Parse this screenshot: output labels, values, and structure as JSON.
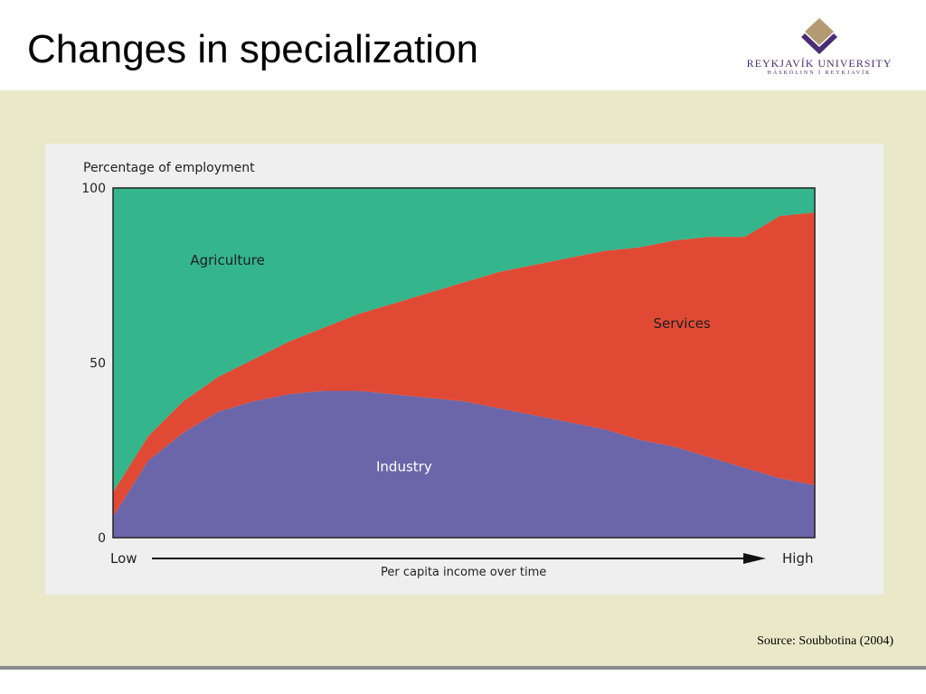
{
  "slide": {
    "title": "Changes in specialization",
    "source": "Source: Soubbotina (2004)"
  },
  "logo": {
    "name": "REYKJAVÍK UNIVERSITY",
    "subtitle": "HÁSKÓLINN Í REYKJAVÍK",
    "icon": "diamond-mark-icon",
    "colors": {
      "primary": "#4a2d74",
      "accent": "#b39a72"
    }
  },
  "chart_data": {
    "type": "area",
    "title": "",
    "ylabel": "Percentage of employment",
    "ylim": [
      0,
      100
    ],
    "yticks": [
      0,
      50,
      100
    ],
    "xlabel": "Per capita income over time",
    "x_low_label": "Low",
    "x_high_label": "High",
    "x": [
      0,
      0.05,
      0.1,
      0.15,
      0.2,
      0.25,
      0.3,
      0.35,
      0.4,
      0.45,
      0.5,
      0.55,
      0.6,
      0.65,
      0.7,
      0.75,
      0.8,
      0.85,
      0.9,
      0.95,
      1
    ],
    "stacked": true,
    "series": [
      {
        "name": "Industry",
        "color": "#6b66a9",
        "values": [
          6,
          22,
          30,
          36,
          39,
          41,
          42,
          42,
          41,
          40,
          39,
          37,
          35,
          33,
          31,
          28,
          26,
          23,
          20,
          17,
          15
        ]
      },
      {
        "name": "Services",
        "color": "#e04a34",
        "values": [
          7,
          7,
          9,
          10,
          12,
          15,
          18,
          22,
          26,
          30,
          34,
          39,
          43,
          47,
          51,
          55,
          59,
          63,
          66,
          75,
          78
        ]
      },
      {
        "name": "Agriculture",
        "color": "#34b58c",
        "values": [
          87,
          71,
          61,
          54,
          49,
          44,
          40,
          36,
          33,
          30,
          27,
          24,
          22,
          20,
          18,
          17,
          15,
          14,
          14,
          8,
          7
        ]
      }
    ],
    "grid": false,
    "legend": "inline labels"
  }
}
